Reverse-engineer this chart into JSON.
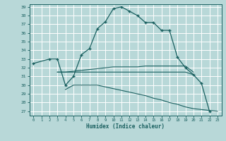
{
  "xlabel": "Humidex (Indice chaleur)",
  "background_color": "#b8d8d8",
  "grid_color": "#ffffff",
  "line_color": "#1a6060",
  "series_main_x": [
    0,
    2,
    3,
    4,
    5,
    6,
    7,
    8,
    9,
    10,
    11,
    12,
    13,
    14,
    15,
    16,
    17,
    18,
    19,
    20,
    21,
    22
  ],
  "series_main_y": [
    32.5,
    33.0,
    33.0,
    30.0,
    31.0,
    33.5,
    34.2,
    36.5,
    37.3,
    38.8,
    39.0,
    38.5,
    38.0,
    37.2,
    37.2,
    36.3,
    36.3,
    33.2,
    32.0,
    31.2,
    30.2,
    27.0
  ],
  "series_upper_x": [
    3,
    4,
    5,
    6,
    7,
    8,
    9,
    10,
    11,
    12,
    13,
    14,
    15,
    16,
    17,
    18,
    19,
    20
  ],
  "series_upper_y": [
    31.5,
    31.5,
    31.6,
    31.7,
    31.8,
    31.9,
    32.0,
    32.1,
    32.1,
    32.1,
    32.1,
    32.2,
    32.2,
    32.2,
    32.2,
    32.2,
    32.2,
    31.5
  ],
  "series_mid_x": [
    3,
    4,
    5,
    6,
    7,
    8,
    9,
    10,
    11,
    12,
    13,
    14,
    15,
    16,
    17,
    18,
    19,
    20
  ],
  "series_mid_y": [
    31.5,
    31.5,
    31.5,
    31.5,
    31.5,
    31.5,
    31.5,
    31.5,
    31.5,
    31.5,
    31.5,
    31.5,
    31.5,
    31.5,
    31.5,
    31.5,
    31.5,
    31.2
  ],
  "series_lower_x": [
    4,
    5,
    6,
    7,
    8,
    9,
    10,
    11,
    12,
    13,
    14,
    15,
    16,
    17,
    18,
    19,
    20,
    21,
    22,
    23
  ],
  "series_lower_y": [
    29.5,
    30.0,
    30.0,
    30.0,
    30.0,
    29.8,
    29.6,
    29.4,
    29.2,
    29.0,
    28.8,
    28.5,
    28.3,
    28.0,
    27.8,
    27.5,
    27.3,
    27.2,
    27.1,
    27.0
  ],
  "ylim": [
    27,
    39
  ],
  "xlim": [
    0,
    23
  ],
  "yticks": [
    27,
    28,
    29,
    30,
    31,
    32,
    33,
    34,
    35,
    36,
    37,
    38,
    39
  ],
  "xticks": [
    0,
    1,
    2,
    3,
    4,
    5,
    6,
    7,
    8,
    9,
    10,
    11,
    12,
    13,
    14,
    15,
    16,
    17,
    18,
    19,
    20,
    21,
    22,
    23
  ]
}
